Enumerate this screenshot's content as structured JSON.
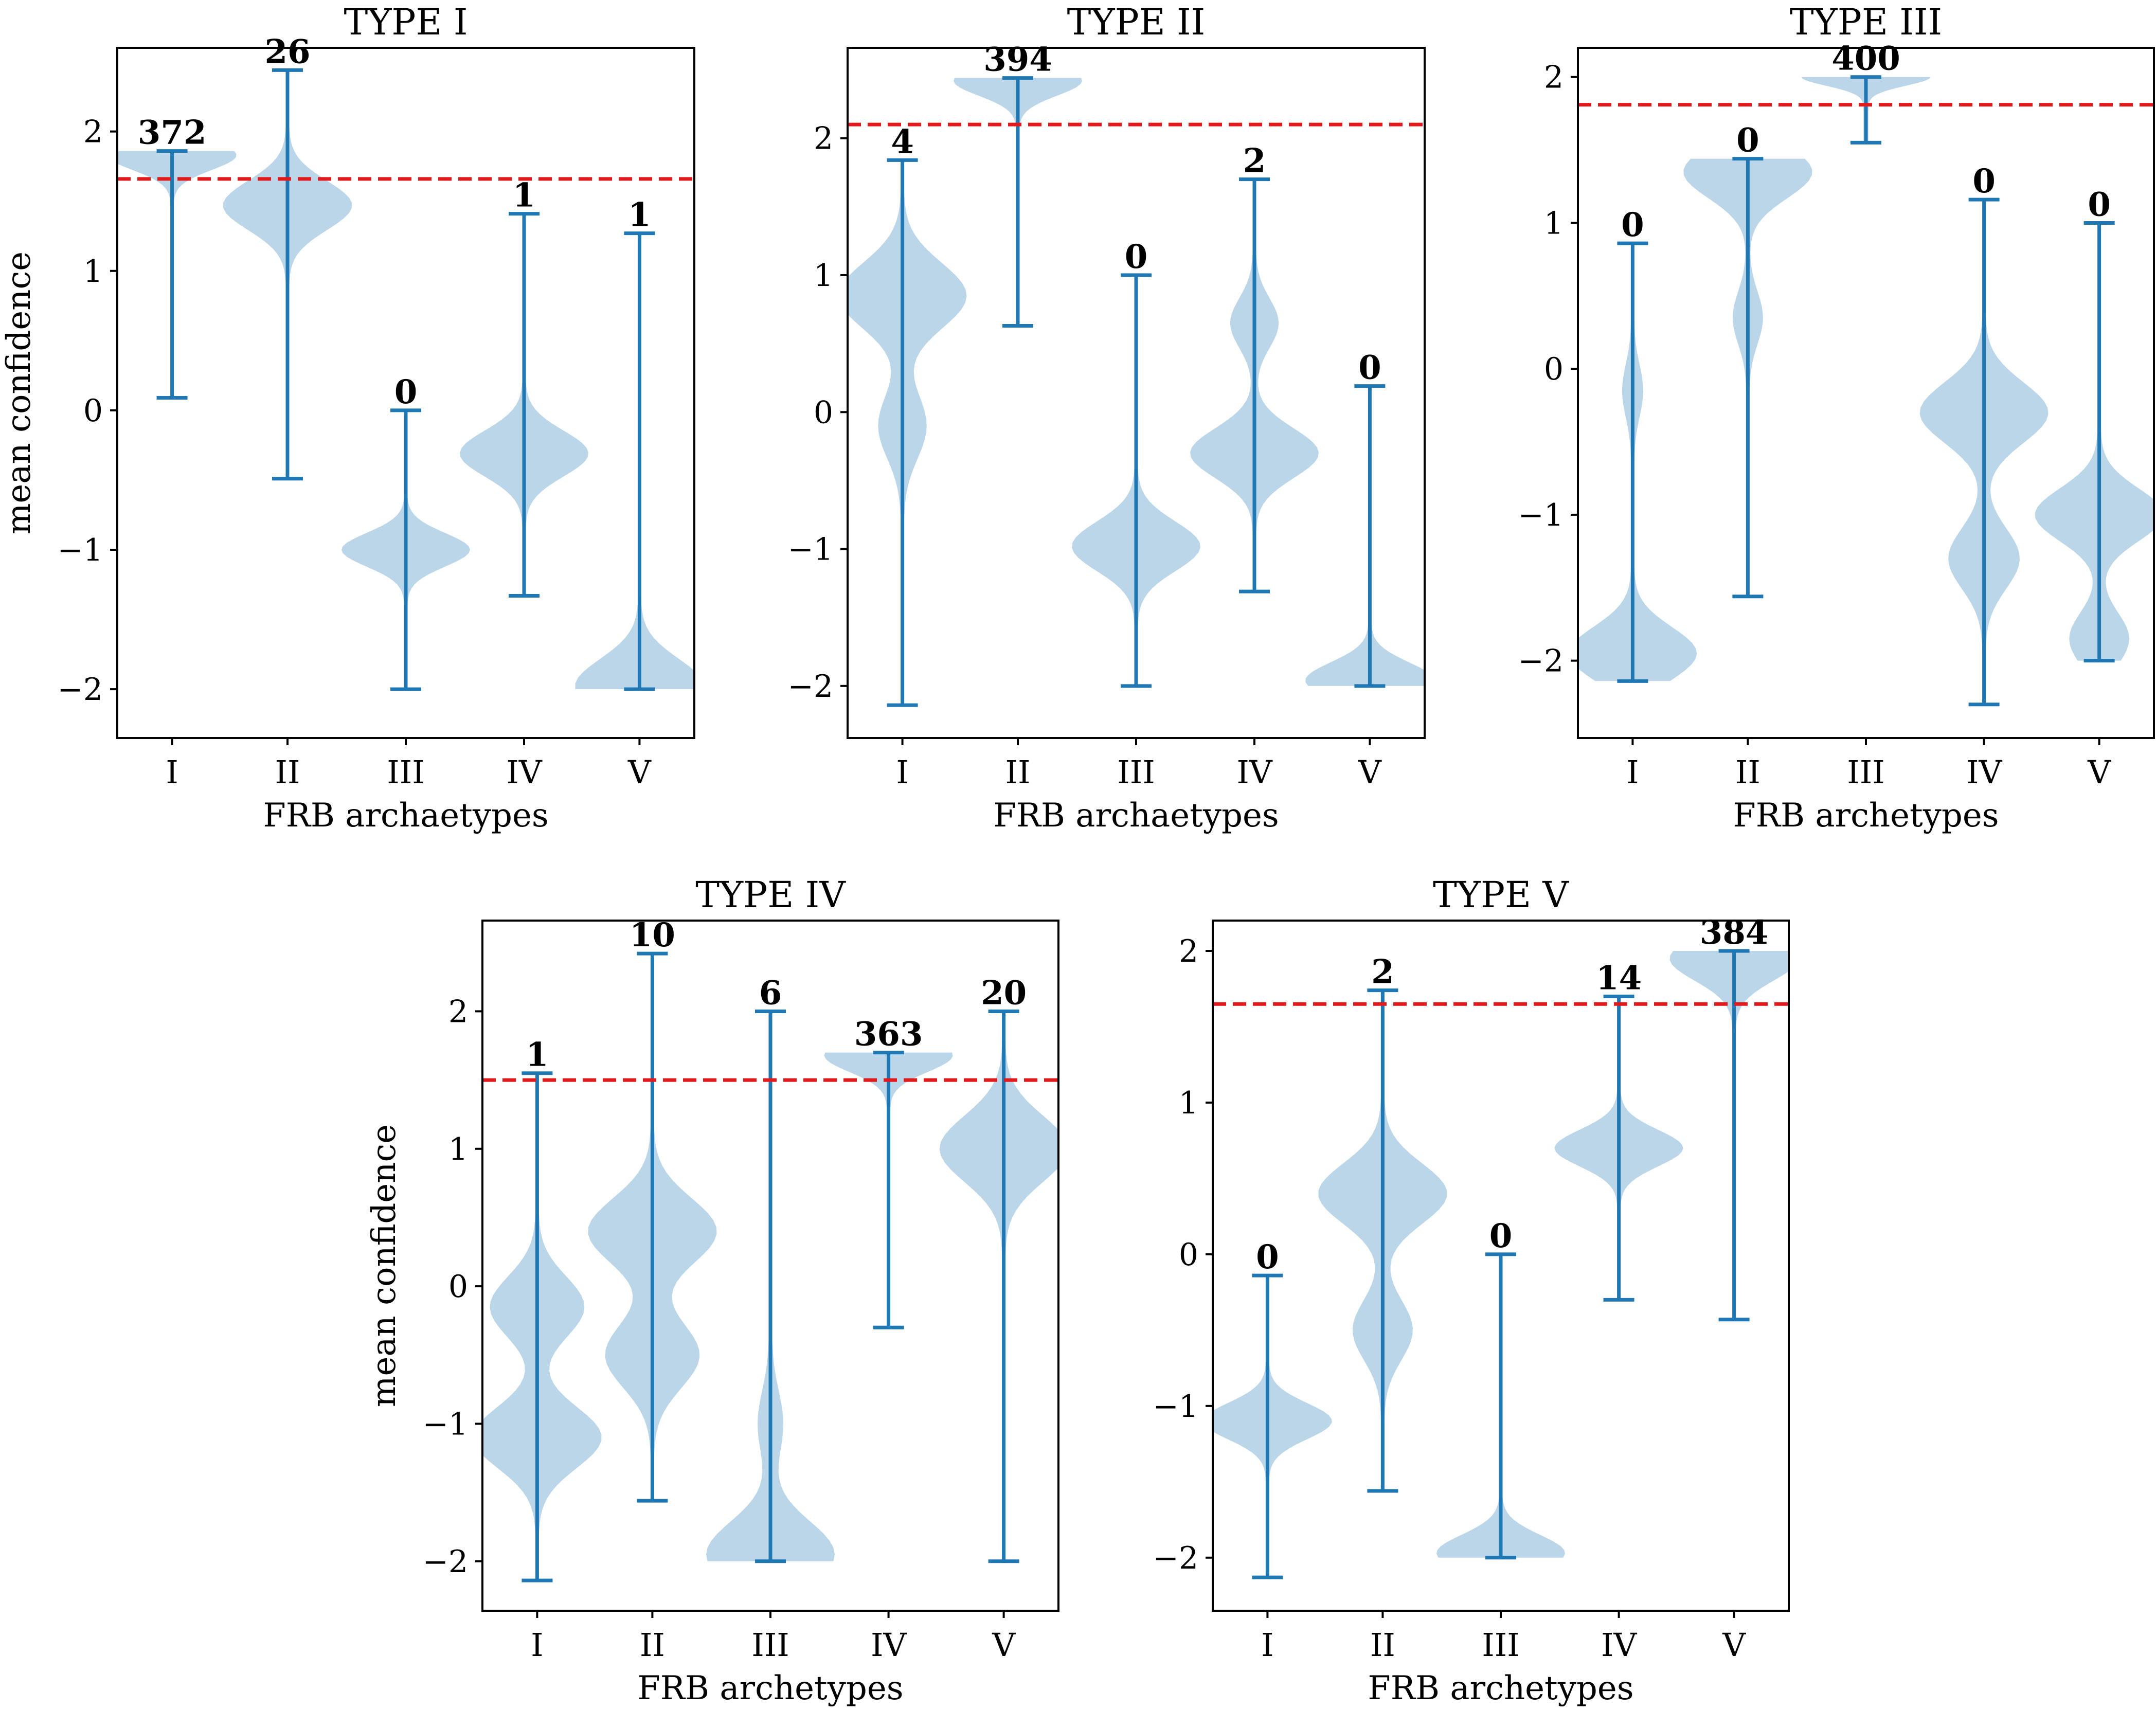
{
  "figure": {
    "threshold_color": "#e31a1c",
    "violin_color": "#1f77b4",
    "violin_fill_opacity": 0.3
  },
  "chart_data": [
    {
      "type": "violin",
      "title": "TYPE I",
      "xlabel": "FRB archaetypes",
      "ylabel": "mean confidence",
      "categories": [
        "I",
        "II",
        "III",
        "IV",
        "V"
      ],
      "ylim": [
        -2.35,
        2.6
      ],
      "yticks": [
        -2,
        -1,
        0,
        1,
        2
      ],
      "threshold": 1.66,
      "groups": [
        {
          "category": "I",
          "count": "372",
          "min": 0.09,
          "max": 1.86,
          "modes": [
            [
              1.83,
              0.55
            ]
          ]
        },
        {
          "category": "II",
          "count": "26",
          "min": -0.49,
          "max": 2.44,
          "modes": [
            [
              1.47,
              0.55
            ]
          ]
        },
        {
          "category": "III",
          "count": "0",
          "min": -2.0,
          "max": 0.0,
          "modes": [
            [
              -1.0,
              0.55
            ]
          ]
        },
        {
          "category": "IV",
          "count": "1",
          "min": -1.33,
          "max": 1.41,
          "modes": [
            [
              -0.31,
              0.55
            ]
          ]
        },
        {
          "category": "V",
          "count": "1",
          "min": -2.0,
          "max": 1.27,
          "modes": [
            [
              -1.98,
              0.65
            ]
          ]
        }
      ]
    },
    {
      "type": "violin",
      "title": "TYPE II",
      "xlabel": "FRB archaetypes",
      "ylabel": "",
      "categories": [
        "I",
        "II",
        "III",
        "IV",
        "V"
      ],
      "ylim": [
        -2.38,
        2.66
      ],
      "yticks": [
        -2,
        -1,
        0,
        1,
        2
      ],
      "threshold": 2.1,
      "groups": [
        {
          "category": "I",
          "count": "4",
          "min": -2.14,
          "max": 1.84,
          "modes": [
            [
              0.85,
              0.55
            ],
            [
              -0.1,
              0.2
            ]
          ]
        },
        {
          "category": "II",
          "count": "394",
          "min": 0.63,
          "max": 2.44,
          "modes": [
            [
              2.42,
              0.55
            ]
          ]
        },
        {
          "category": "III",
          "count": "0",
          "min": -2.0,
          "max": 1.0,
          "modes": [
            [
              -0.98,
              0.55
            ]
          ]
        },
        {
          "category": "IV",
          "count": "2",
          "min": -1.31,
          "max": 1.7,
          "modes": [
            [
              -0.3,
              0.55
            ],
            [
              0.65,
              0.2
            ]
          ]
        },
        {
          "category": "V",
          "count": "0",
          "min": -2.0,
          "max": 0.19,
          "modes": [
            [
              -1.96,
              0.65
            ]
          ]
        }
      ]
    },
    {
      "type": "violin",
      "title": "TYPE III",
      "xlabel": "FRB archetypes",
      "ylabel": "",
      "categories": [
        "I",
        "II",
        "III",
        "IV",
        "V"
      ],
      "ylim": [
        -2.53,
        2.2
      ],
      "yticks": [
        -2,
        -1,
        0,
        1,
        2
      ],
      "threshold": 1.81,
      "groups": [
        {
          "category": "I",
          "count": "0",
          "min": -2.14,
          "max": 0.86,
          "modes": [
            [
              -1.95,
              0.55
            ],
            [
              -0.15,
              0.08
            ]
          ]
        },
        {
          "category": "II",
          "count": "0",
          "min": -1.56,
          "max": 1.44,
          "modes": [
            [
              1.35,
              0.55
            ],
            [
              0.35,
              0.12
            ]
          ]
        },
        {
          "category": "III",
          "count": "400",
          "min": 1.55,
          "max": 2.0,
          "modes": [
            [
              2.0,
              0.3
            ]
          ]
        },
        {
          "category": "IV",
          "count": "0",
          "min": -2.3,
          "max": 1.16,
          "modes": [
            [
              -0.3,
              0.55
            ],
            [
              -1.3,
              0.3
            ]
          ]
        },
        {
          "category": "V",
          "count": "0",
          "min": -2.0,
          "max": 1.0,
          "modes": [
            [
              -1.0,
              0.55
            ],
            [
              -1.85,
              0.25
            ]
          ]
        }
      ]
    },
    {
      "type": "violin",
      "title": "TYPE IV",
      "xlabel": "FRB archetypes",
      "ylabel": "mean confidence",
      "categories": [
        "I",
        "II",
        "III",
        "IV",
        "V"
      ],
      "ylim": [
        -2.36,
        2.66
      ],
      "yticks": [
        -2,
        -1,
        0,
        1,
        2
      ],
      "threshold": 1.5,
      "groups": [
        {
          "category": "I",
          "count": "1",
          "min": -2.14,
          "max": 1.55,
          "modes": [
            [
              -1.1,
              0.55
            ],
            [
              -0.15,
              0.4
            ]
          ]
        },
        {
          "category": "II",
          "count": "10",
          "min": -1.56,
          "max": 2.42,
          "modes": [
            [
              0.4,
              0.55
            ],
            [
              -0.5,
              0.4
            ]
          ]
        },
        {
          "category": "III",
          "count": "6",
          "min": -2.0,
          "max": 2.0,
          "modes": [
            [
              -1.95,
              0.55
            ],
            [
              -1.0,
              0.1
            ]
          ]
        },
        {
          "category": "IV",
          "count": "363",
          "min": -0.3,
          "max": 1.7,
          "modes": [
            [
              1.68,
              0.55
            ]
          ]
        },
        {
          "category": "V",
          "count": "20",
          "min": -2.0,
          "max": 2.0,
          "modes": [
            [
              1.0,
              0.55
            ]
          ]
        }
      ]
    },
    {
      "type": "violin",
      "title": "TYPE V",
      "xlabel": "FRB archetypes",
      "ylabel": "",
      "categories": [
        "I",
        "II",
        "III",
        "IV",
        "V"
      ],
      "ylim": [
        -2.35,
        2.2
      ],
      "yticks": [
        -2,
        -1,
        0,
        1,
        2
      ],
      "threshold": 1.65,
      "groups": [
        {
          "category": "I",
          "count": "0",
          "min": -2.13,
          "max": -0.14,
          "modes": [
            [
              -1.1,
              0.55
            ]
          ]
        },
        {
          "category": "II",
          "count": "2",
          "min": -1.56,
          "max": 1.74,
          "modes": [
            [
              0.4,
              0.55
            ],
            [
              -0.5,
              0.25
            ]
          ]
        },
        {
          "category": "III",
          "count": "0",
          "min": -2.0,
          "max": 0.0,
          "modes": [
            [
              -1.97,
              0.6
            ]
          ]
        },
        {
          "category": "IV",
          "count": "14",
          "min": -0.3,
          "max": 1.7,
          "modes": [
            [
              0.7,
              0.55
            ]
          ]
        },
        {
          "category": "V",
          "count": "384",
          "min": -0.43,
          "max": 2.0,
          "modes": [
            [
              1.95,
              0.55
            ]
          ]
        }
      ]
    }
  ]
}
